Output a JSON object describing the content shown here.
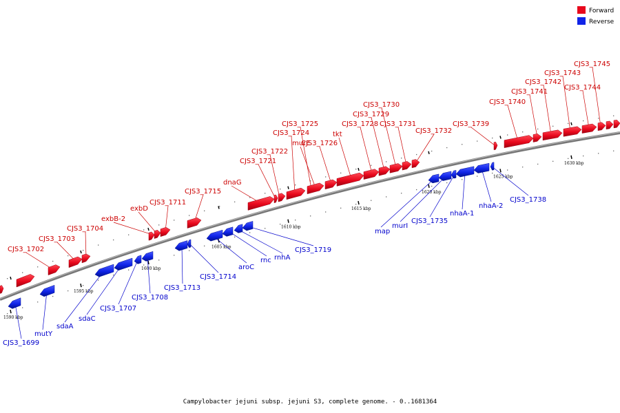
{
  "colors": {
    "forward": "#e8081c",
    "forward_dark": "#a00010",
    "reverse": "#1024e8",
    "reverse_dark": "#001090",
    "backbone": "#888888"
  },
  "legend": [
    {
      "label": "Forward",
      "color": "#e8081c"
    },
    {
      "label": "Reverse",
      "color": "#1024e8"
    }
  ],
  "caption": "Campylobacter jejuni subsp. jejuni S3, complete genome. - 0..1681364",
  "ticks": [
    {
      "label": "1590 kbp"
    },
    {
      "label": "1595 kbp"
    },
    {
      "label": "1600 kbp"
    },
    {
      "label": "1605 kbp"
    },
    {
      "label": "1610 kbp"
    },
    {
      "label": "1615 kbp"
    },
    {
      "label": "1620 kbp"
    },
    {
      "label": "1625 kbp"
    },
    {
      "label": "1630 kbp"
    }
  ],
  "forward_labels": [
    {
      "label": "CJS3_1702"
    },
    {
      "label": "CJS3_1703"
    },
    {
      "label": "CJS3_1704"
    },
    {
      "label": "exbB-2"
    },
    {
      "label": "exbD"
    },
    {
      "label": "CJS3_1711"
    },
    {
      "label": "CJS3_1715"
    },
    {
      "label": "dnaG"
    },
    {
      "label": "CJS3_1721"
    },
    {
      "label": "CJS3_1722"
    },
    {
      "label": "CJS3_1724"
    },
    {
      "label": "CJS3_1725"
    },
    {
      "label": "murE"
    },
    {
      "label": "CJS3_1726"
    },
    {
      "label": "tkt"
    },
    {
      "label": "CJS3_1728"
    },
    {
      "label": "CJS3_1729"
    },
    {
      "label": "CJS3_1730"
    },
    {
      "label": "CJS3_1731"
    },
    {
      "label": "CJS3_1732"
    },
    {
      "label": "CJS3_1739"
    },
    {
      "label": "CJS3_1740"
    },
    {
      "label": "CJS3_1741"
    },
    {
      "label": "CJS3_1742"
    },
    {
      "label": "CJS3_1743"
    },
    {
      "label": "CJS3_1744"
    },
    {
      "label": "CJS3_1745"
    }
  ],
  "reverse_labels": [
    {
      "label": "CJS3_1699"
    },
    {
      "label": "mutY"
    },
    {
      "label": "sdaA"
    },
    {
      "label": "sdaC"
    },
    {
      "label": "CJS3_1707"
    },
    {
      "label": "CJS3_1708"
    },
    {
      "label": "CJS3_1713"
    },
    {
      "label": "CJS3_1714"
    },
    {
      "label": "aroC"
    },
    {
      "label": "rnc"
    },
    {
      "label": "rnhA"
    },
    {
      "label": "CJS3_1719"
    },
    {
      "label": "map"
    },
    {
      "label": "murI"
    },
    {
      "label": "CJS3_1735"
    },
    {
      "label": "nhaA-1"
    },
    {
      "label": "nhaA-2"
    },
    {
      "label": "CJS3_1738"
    }
  ]
}
